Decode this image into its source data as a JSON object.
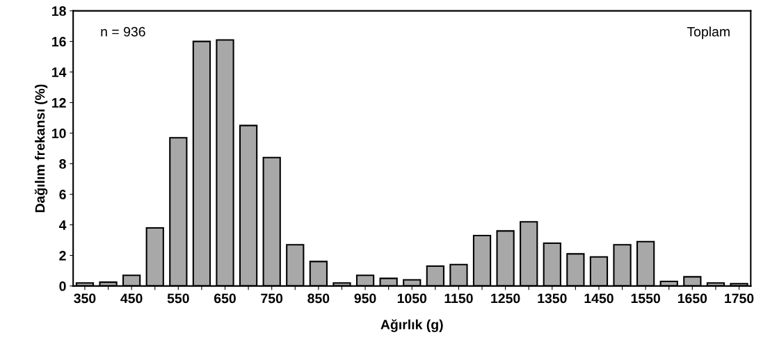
{
  "chart_data": {
    "type": "bar",
    "xlabel": "Ağırlık (g)",
    "ylabel": "Dağılım frekansı (%)",
    "categories": [
      "350",
      null,
      "450",
      null,
      "550",
      null,
      "650",
      null,
      "750",
      null,
      "850",
      null,
      "950",
      null,
      "1050",
      null,
      "1150",
      null,
      "1250",
      null,
      "1350",
      null,
      "1450",
      null,
      "1550",
      null,
      "1650",
      null,
      "1750"
    ],
    "values": [
      0.2,
      0.25,
      0.7,
      3.8,
      9.7,
      16.0,
      16.1,
      10.5,
      8.4,
      2.7,
      1.6,
      0.2,
      0.7,
      0.5,
      0.4,
      1.3,
      1.4,
      3.3,
      3.6,
      4.2,
      2.8,
      2.1,
      1.9,
      2.7,
      2.9,
      0.3,
      0.6,
      0.2,
      0.15
    ],
    "color": "#a8a8a8",
    "ylim": [
      0,
      18
    ],
    "yticks": [
      0,
      2,
      4,
      6,
      8,
      10,
      12,
      14,
      16,
      18
    ],
    "grid": false,
    "legend": false,
    "annotations": [
      "n = 936",
      "Toplam"
    ]
  }
}
